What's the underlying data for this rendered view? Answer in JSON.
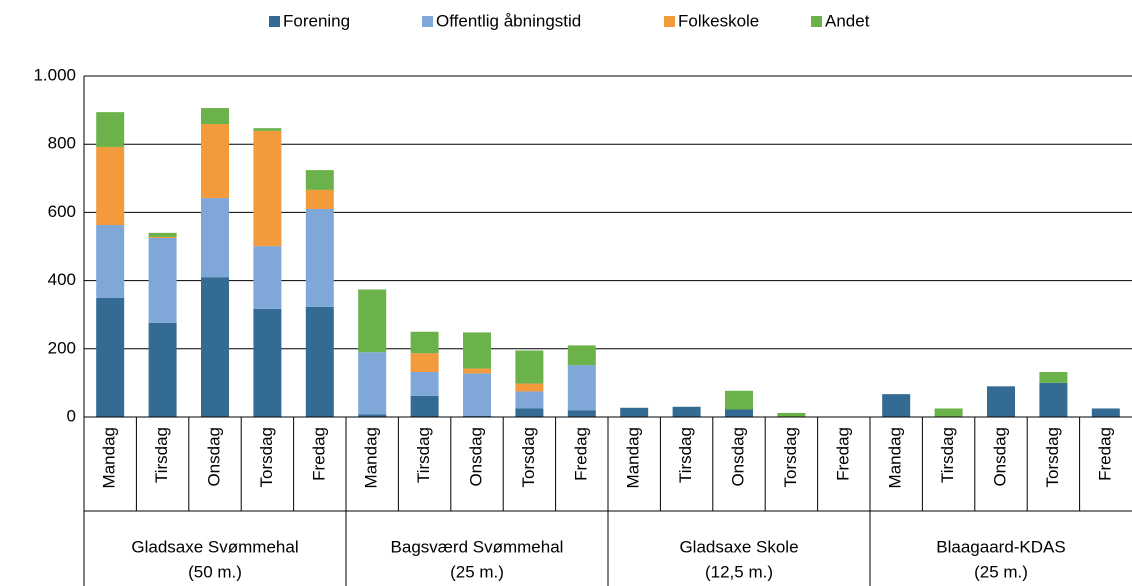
{
  "chart_data": {
    "type": "stacked_bar",
    "categories": [
      "Mandag",
      "Tirsdag",
      "Onsdag",
      "Torsdag",
      "Fredag",
      "Mandag",
      "Tirsdag",
      "Onsdag",
      "Torsdag",
      "Fredag",
      "Mandag",
      "Tirsdag",
      "Onsdag",
      "Torsdag",
      "Fredag",
      "Mandag",
      "Tirsdag",
      "Onsdag",
      "Torsdag",
      "Fredag"
    ],
    "groups": [
      [
        "Gladsaxe Svømmehal",
        "(50 m.)"
      ],
      [
        "Bagsværd Svømmehal",
        "(25 m.)"
      ],
      [
        "Gladsaxe Skole",
        "(12,5 m.)"
      ],
      [
        "Blaagaard-KDAS",
        "(25 m.)"
      ]
    ],
    "series": [
      {
        "name": "Forening",
        "color": "#336b93",
        "values": [
          349,
          276,
          410,
          317,
          323,
          8,
          62,
          3,
          25,
          20,
          27,
          30,
          22,
          0,
          0,
          67,
          0,
          90,
          100,
          25
        ]
      },
      {
        "name": "Offentlig åbningstid",
        "color": "#7fa8d8",
        "values": [
          214,
          249,
          232,
          184,
          287,
          182,
          70,
          125,
          50,
          132,
          0,
          0,
          0,
          0,
          0,
          0,
          0,
          0,
          0,
          0
        ]
      },
      {
        "name": "Folkeskole",
        "color": "#f39a3c",
        "values": [
          229,
          3,
          217,
          338,
          56,
          0,
          55,
          14,
          23,
          0,
          0,
          0,
          0,
          0,
          0,
          0,
          0,
          0,
          0,
          0
        ]
      },
      {
        "name": "Andet",
        "color": "#6cb24b",
        "values": [
          102,
          12,
          47,
          8,
          58,
          184,
          63,
          106,
          97,
          58,
          0,
          0,
          55,
          12,
          0,
          0,
          25,
          0,
          32,
          0
        ]
      }
    ],
    "ylim": [
      0,
      1000
    ],
    "yticks": [
      0,
      200,
      400,
      600,
      800,
      {
        "value": 1000,
        "label": "1.000"
      }
    ],
    "grid": true
  }
}
